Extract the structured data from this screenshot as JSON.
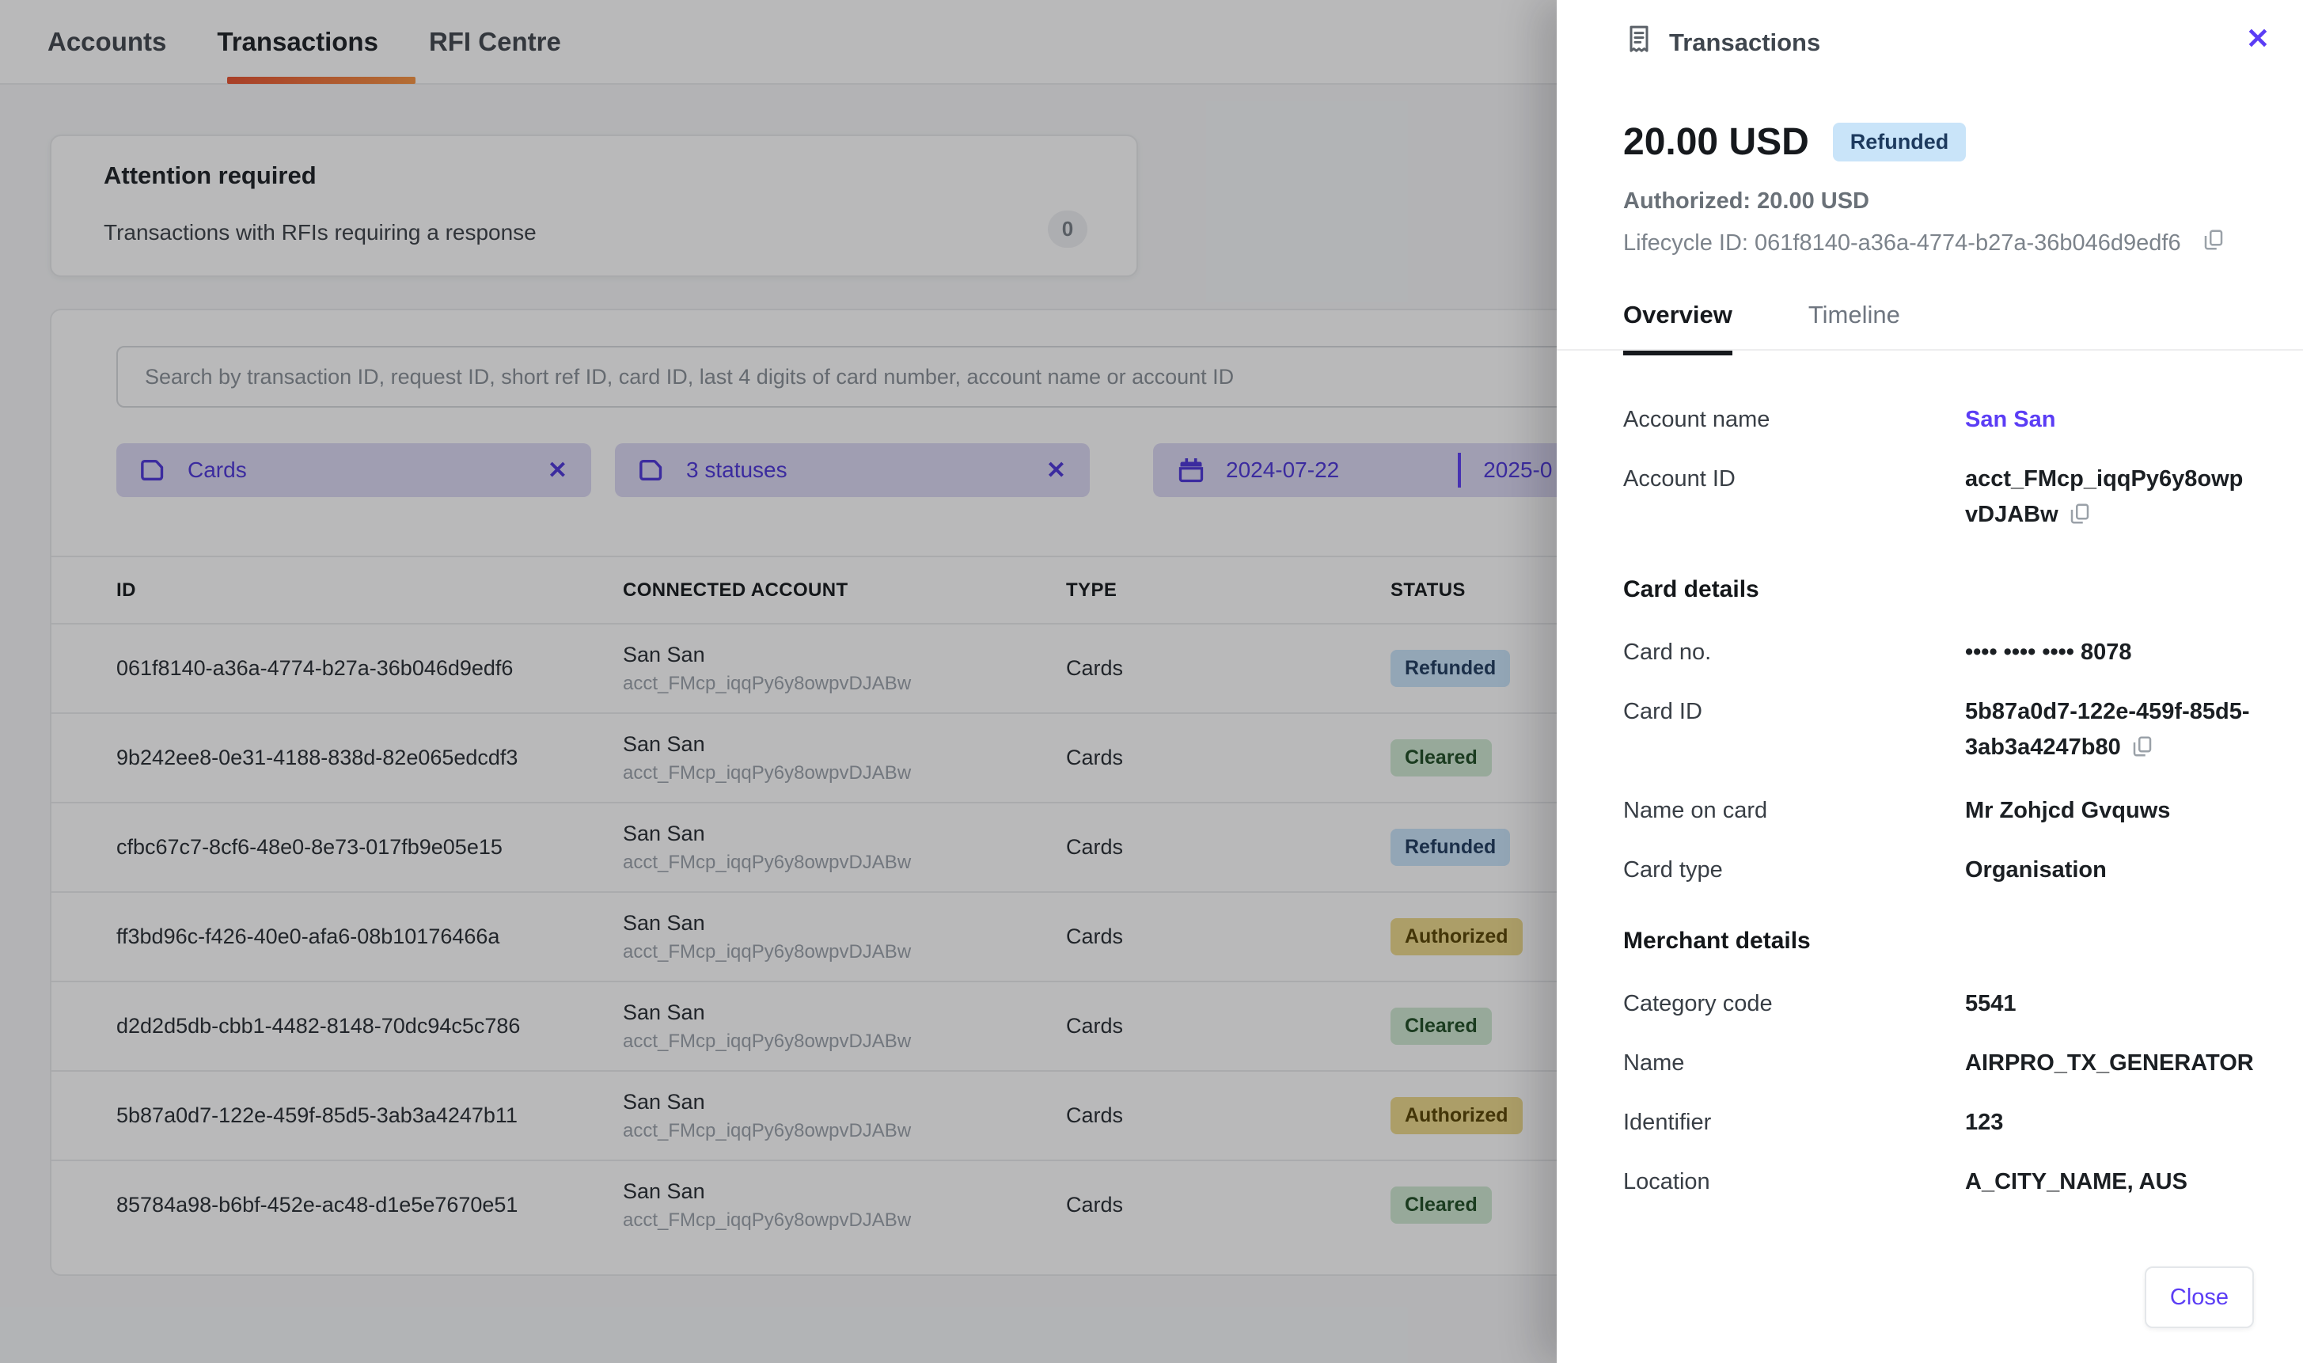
{
  "nav": {
    "items": [
      {
        "label": "Accounts",
        "active": false
      },
      {
        "label": "Transactions",
        "active": true
      },
      {
        "label": "RFI Centre",
        "active": false
      }
    ]
  },
  "attention": {
    "title": "Attention required",
    "row_label": "Transactions with RFIs requiring a response",
    "count": "0"
  },
  "search": {
    "placeholder": "Search by transaction ID, request ID, short ref ID, card ID, last 4 digits of card number, account name or account ID"
  },
  "filters": {
    "cards_label": "Cards",
    "statuses_label": "3 statuses",
    "date_from": "2024-07-22",
    "date_to_visible": "2025-0"
  },
  "table": {
    "columns": [
      "ID",
      "CONNECTED ACCOUNT",
      "TYPE",
      "STATUS"
    ],
    "rows": [
      {
        "id": "061f8140-a36a-4774-b27a-36b046d9edf6",
        "account_name": "San San",
        "account_id": "acct_FMcp_iqqPy6y8owpvDJABw",
        "type": "Cards",
        "status": "Refunded",
        "status_kind": "refunded"
      },
      {
        "id": "9b242ee8-0e31-4188-838d-82e065edcdf3",
        "account_name": "San San",
        "account_id": "acct_FMcp_iqqPy6y8owpvDJABw",
        "type": "Cards",
        "status": "Cleared",
        "status_kind": "cleared"
      },
      {
        "id": "cfbc67c7-8cf6-48e0-8e73-017fb9e05e15",
        "account_name": "San San",
        "account_id": "acct_FMcp_iqqPy6y8owpvDJABw",
        "type": "Cards",
        "status": "Refunded",
        "status_kind": "refunded"
      },
      {
        "id": "ff3bd96c-f426-40e0-afa6-08b10176466a",
        "account_name": "San San",
        "account_id": "acct_FMcp_iqqPy6y8owpvDJABw",
        "type": "Cards",
        "status": "Authorized",
        "status_kind": "authorized"
      },
      {
        "id": "d2d2d5db-cbb1-4482-8148-70dc94c5c786",
        "account_name": "San San",
        "account_id": "acct_FMcp_iqqPy6y8owpvDJABw",
        "type": "Cards",
        "status": "Cleared",
        "status_kind": "cleared"
      },
      {
        "id": "5b87a0d7-122e-459f-85d5-3ab3a4247b11",
        "account_name": "San San",
        "account_id": "acct_FMcp_iqqPy6y8owpvDJABw",
        "type": "Cards",
        "status": "Authorized",
        "status_kind": "authorized"
      },
      {
        "id": "85784a98-b6bf-452e-ac48-d1e5e7670e51",
        "account_name": "San San",
        "account_id": "acct_FMcp_iqqPy6y8owpvDJABw",
        "type": "Cards",
        "status": "Cleared",
        "status_kind": "cleared"
      }
    ]
  },
  "drawer": {
    "title": "Transactions",
    "close_icon": "✕",
    "amount": "20.00 USD",
    "status_badge": "Refunded",
    "authorized_line": "Authorized: 20.00 USD",
    "lifecycle_line": "Lifecycle ID: 061f8140-a36a-4774-b27a-36b046d9edf6",
    "tabs": [
      {
        "label": "Overview",
        "active": true
      },
      {
        "label": "Timeline",
        "active": false
      }
    ],
    "sections": [
      {
        "title": "",
        "rows": [
          {
            "label": "Account name",
            "value": "San San",
            "link": true
          },
          {
            "label": "Account ID",
            "value": "acct_FMcp_iqqPy6y8owpvDJABw",
            "copy": true,
            "break_all": true
          }
        ]
      },
      {
        "title": "Card details",
        "rows": [
          {
            "label": "Card no.",
            "value": "•••• •••• •••• 8078"
          },
          {
            "label": "Card ID",
            "value": "5b87a0d7-122e-459f-85d5-3ab3a4247b80",
            "copy": true
          },
          {
            "label": "Name on card",
            "value": "Mr Zohjcd Gvquws"
          },
          {
            "label": "Card type",
            "value": "Organisation"
          }
        ]
      },
      {
        "title": "Merchant details",
        "rows": [
          {
            "label": "Category code",
            "value": "5541"
          },
          {
            "label": "Name",
            "value": "AIRPRO_TX_GENERATOR"
          },
          {
            "label": "Identifier",
            "value": "123"
          },
          {
            "label": "Location",
            "value": "A_CITY_NAME, AUS"
          }
        ]
      }
    ],
    "footer_close_label": "Close"
  },
  "colors": {
    "accent_purple": "#5b3df5",
    "nav_underline_gradient": [
      "#e8512e",
      "#f79441"
    ],
    "badge_refunded_bg": "#c9e4f9",
    "badge_cleared_bg": "#cfe9d2",
    "badge_authorized_bg": "#ecd98a"
  }
}
